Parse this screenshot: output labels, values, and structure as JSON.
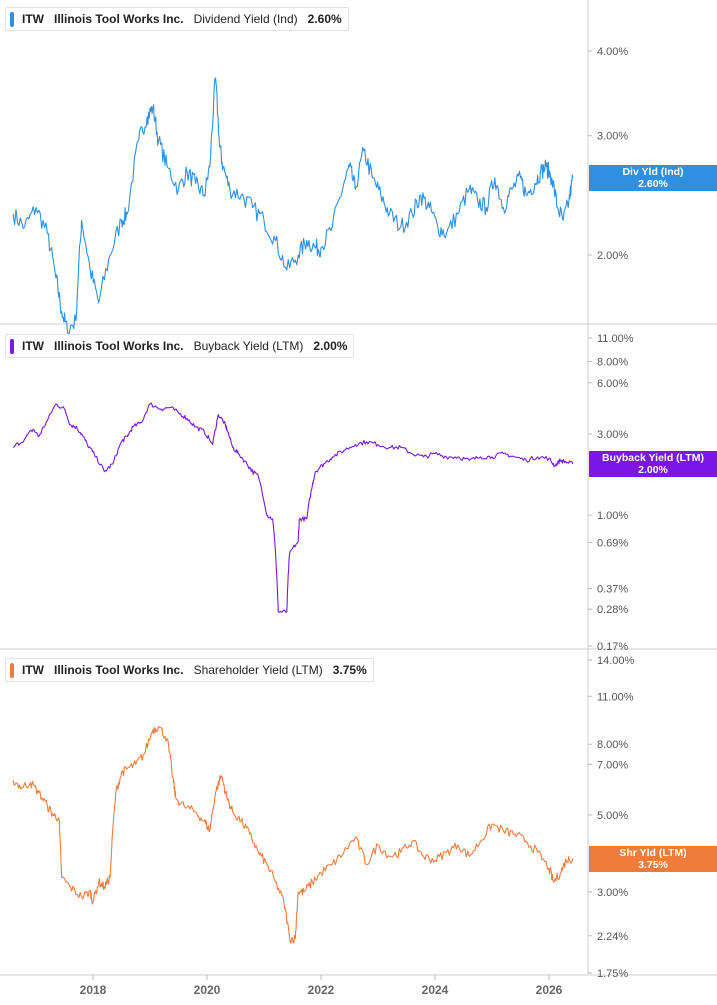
{
  "colors": {
    "dividend": "#2f8fe0",
    "buyback": "#7b16e6",
    "shareholder": "#f07c3c"
  },
  "panels": [
    {
      "ticker": "ITW",
      "company": "Illinois Tool Works Inc.",
      "metric": "Dividend Yield (Ind)",
      "value": "2.60%",
      "flag_name": "Div Yld (Ind)",
      "flag_value": "2.60%"
    },
    {
      "ticker": "ITW",
      "company": "Illinois Tool Works Inc.",
      "metric": "Buyback Yield (LTM)",
      "value": "2.00%",
      "flag_name": "Buyback Yield (LTM)",
      "flag_value": "2.00%"
    },
    {
      "ticker": "ITW",
      "company": "Illinois Tool Works Inc.",
      "metric": "Shareholder Yield (LTM)",
      "value": "3.75%",
      "flag_name": "Shr Yld (LTM)",
      "flag_value": "3.75%"
    }
  ],
  "chart_data": [
    {
      "type": "line",
      "title": "ITW Illinois Tool Works Inc. Dividend Yield (Ind) 2.60%",
      "scale": "log",
      "y_ticks": [
        {
          "v": 4.0,
          "label": "4.00%"
        },
        {
          "v": 3.0,
          "label": "3.00%"
        },
        {
          "v": 2.0,
          "label": "2.00%"
        }
      ],
      "ylim": [
        1.5,
        4.6
      ],
      "x_ticks": [
        2018,
        2020,
        2022,
        2024,
        2026
      ],
      "xlim": [
        2016.6,
        2026.45
      ],
      "series": [
        {
          "name": "Dividend Yield (Ind)",
          "x": [
            2016.6,
            2016.8,
            2017.0,
            2017.2,
            2017.35,
            2017.45,
            2017.55,
            2017.7,
            2017.8,
            2017.95,
            2018.1,
            2018.3,
            2018.5,
            2018.6,
            2018.8,
            2018.95,
            2019.05,
            2019.15,
            2019.3,
            2019.5,
            2019.65,
            2019.8,
            2019.95,
            2020.05,
            2020.15,
            2020.22,
            2020.28,
            2020.4,
            2020.6,
            2020.8,
            2021.0,
            2021.2,
            2021.4,
            2021.6,
            2021.75,
            2021.9,
            2022.0,
            2022.2,
            2022.4,
            2022.5,
            2022.6,
            2022.75,
            2022.9,
            2023.05,
            2023.2,
            2023.4,
            2023.6,
            2023.75,
            2023.9,
            2024.05,
            2024.2,
            2024.4,
            2024.6,
            2024.75,
            2024.9,
            2025.05,
            2025.2,
            2025.35,
            2025.5,
            2025.6,
            2025.75,
            2025.85,
            2025.95,
            2026.05,
            2026.15,
            2026.25,
            2026.35,
            2026.42
          ],
          "y": [
            2.3,
            2.2,
            2.35,
            2.15,
            1.85,
            1.65,
            1.55,
            1.6,
            2.25,
            1.9,
            1.7,
            2.0,
            2.25,
            2.3,
            2.95,
            3.2,
            3.3,
            2.95,
            2.7,
            2.5,
            2.65,
            2.55,
            2.45,
            2.7,
            3.65,
            2.9,
            2.7,
            2.5,
            2.45,
            2.35,
            2.25,
            2.1,
            1.9,
            2.0,
            2.1,
            2.05,
            2.05,
            2.2,
            2.55,
            2.7,
            2.5,
            2.85,
            2.6,
            2.45,
            2.3,
            2.2,
            2.3,
            2.45,
            2.35,
            2.2,
            2.15,
            2.3,
            2.5,
            2.4,
            2.35,
            2.6,
            2.35,
            2.5,
            2.6,
            2.45,
            2.55,
            2.65,
            2.7,
            2.6,
            2.35,
            2.25,
            2.4,
            2.6
          ]
        }
      ]
    },
    {
      "type": "line",
      "title": "ITW Illinois Tool Works Inc. Buyback Yield (LTM) 2.00%",
      "scale": "log",
      "y_ticks": [
        {
          "v": 11.0,
          "label": "11.00%"
        },
        {
          "v": 8.0,
          "label": "8.00%"
        },
        {
          "v": 6.0,
          "label": "6.00%"
        },
        {
          "v": 3.0,
          "label": "3.00%"
        },
        {
          "v": 1.0,
          "label": "1.00%"
        },
        {
          "v": 0.69,
          "label": "0.69%"
        },
        {
          "v": 0.37,
          "label": "0.37%"
        },
        {
          "v": 0.28,
          "label": "0.28%"
        },
        {
          "v": 0.17,
          "label": "0.17%"
        }
      ],
      "ylim": [
        0.17,
        11.0
      ],
      "x_ticks": [
        2018,
        2020,
        2022,
        2024,
        2026
      ],
      "xlim": [
        2016.6,
        2026.45
      ],
      "series": [
        {
          "name": "Buyback Yield (LTM)",
          "x": [
            2016.6,
            2016.8,
            2016.95,
            2017.05,
            2017.2,
            2017.35,
            2017.5,
            2017.6,
            2017.7,
            2017.8,
            2017.9,
            2018.05,
            2018.2,
            2018.35,
            2018.5,
            2018.6,
            2018.7,
            2018.85,
            2019.0,
            2019.2,
            2019.35,
            2019.5,
            2019.65,
            2019.8,
            2019.95,
            2020.1,
            2020.2,
            2020.3,
            2020.35,
            2020.45,
            2020.55,
            2020.7,
            2020.8,
            2020.9,
            2021.05,
            2021.15,
            2021.25,
            2021.4,
            2021.45,
            2021.6,
            2021.62,
            2021.75,
            2021.85,
            2021.9,
            2022.05,
            2022.2,
            2022.4,
            2022.6,
            2022.8,
            2023.0,
            2023.2,
            2023.4,
            2023.6,
            2023.8,
            2024.0,
            2024.2,
            2024.4,
            2024.6,
            2024.8,
            2025.0,
            2025.2,
            2025.4,
            2025.6,
            2025.8,
            2026.0,
            2026.1,
            2026.2,
            2026.3,
            2026.42
          ],
          "y": [
            2.5,
            2.8,
            3.2,
            2.9,
            3.6,
            4.5,
            4.2,
            3.4,
            3.3,
            3.0,
            2.6,
            2.2,
            1.8,
            2.0,
            2.7,
            2.9,
            3.3,
            3.5,
            4.5,
            4.2,
            4.3,
            4.0,
            3.7,
            3.3,
            3.1,
            2.6,
            3.9,
            3.5,
            3.2,
            2.5,
            2.3,
            2.0,
            1.8,
            1.7,
            1.0,
            0.95,
            0.27,
            0.27,
            0.6,
            0.7,
            0.95,
            0.95,
            1.5,
            1.8,
            2.0,
            2.2,
            2.4,
            2.6,
            2.7,
            2.6,
            2.5,
            2.5,
            2.3,
            2.2,
            2.3,
            2.2,
            2.2,
            2.1,
            2.2,
            2.2,
            2.3,
            2.2,
            2.1,
            2.2,
            2.15,
            1.95,
            2.1,
            2.05,
            2.0
          ]
        }
      ]
    },
    {
      "type": "line",
      "title": "ITW Illinois Tool Works Inc. Shareholder Yield (LTM) 3.75%",
      "scale": "log",
      "y_ticks": [
        {
          "v": 14.0,
          "label": "14.00%"
        },
        {
          "v": 11.0,
          "label": "11.00%"
        },
        {
          "v": 8.0,
          "label": "8.00%"
        },
        {
          "v": 7.0,
          "label": "7.00%"
        },
        {
          "v": 5.0,
          "label": "5.00%"
        },
        {
          "v": 3.0,
          "label": "3.00%"
        },
        {
          "v": 2.24,
          "label": "2.24%"
        },
        {
          "v": 1.75,
          "label": "1.75%"
        }
      ],
      "ylim": [
        1.75,
        14.0
      ],
      "x_ticks": [
        2018,
        2020,
        2022,
        2024,
        2026
      ],
      "xlim": [
        2016.6,
        2026.45
      ],
      "series": [
        {
          "name": "Shareholder Yield (LTM)",
          "x": [
            2016.6,
            2016.75,
            2016.9,
            2017.05,
            2017.2,
            2017.3,
            2017.4,
            2017.45,
            2017.6,
            2017.8,
            2017.95,
            2018.0,
            2018.1,
            2018.2,
            2018.3,
            2018.4,
            2018.5,
            2018.6,
            2018.75,
            2018.9,
            2019.05,
            2019.15,
            2019.3,
            2019.4,
            2019.45,
            2019.6,
            2019.8,
            2019.95,
            2020.05,
            2020.15,
            2020.25,
            2020.35,
            2020.45,
            2020.6,
            2020.75,
            2020.9,
            2021.05,
            2021.2,
            2021.35,
            2021.45,
            2021.55,
            2021.6,
            2021.7,
            2021.85,
            2022.0,
            2022.2,
            2022.4,
            2022.6,
            2022.8,
            2023.0,
            2023.2,
            2023.4,
            2023.6,
            2023.8,
            2024.0,
            2024.2,
            2024.4,
            2024.6,
            2024.8,
            2025.0,
            2025.2,
            2025.4,
            2025.6,
            2025.8,
            2026.0,
            2026.08,
            2026.2,
            2026.3,
            2026.42
          ],
          "y": [
            6.3,
            6.0,
            6.2,
            5.8,
            5.3,
            5.0,
            4.9,
            3.3,
            3.1,
            2.9,
            3.0,
            2.8,
            3.2,
            3.1,
            3.3,
            5.8,
            6.6,
            6.8,
            7.0,
            7.5,
            8.8,
            9.0,
            8.3,
            6.4,
            5.6,
            5.3,
            5.1,
            4.8,
            4.5,
            5.8,
            6.5,
            5.6,
            5.1,
            4.8,
            4.4,
            3.9,
            3.6,
            3.2,
            2.8,
            2.2,
            2.2,
            3.0,
            3.0,
            3.2,
            3.4,
            3.6,
            3.9,
            4.3,
            3.6,
            4.1,
            3.8,
            3.9,
            4.2,
            3.8,
            3.7,
            3.9,
            4.1,
            3.8,
            4.2,
            4.7,
            4.5,
            4.4,
            4.2,
            3.9,
            3.5,
            3.2,
            3.4,
            3.7,
            3.75
          ]
        }
      ]
    }
  ]
}
